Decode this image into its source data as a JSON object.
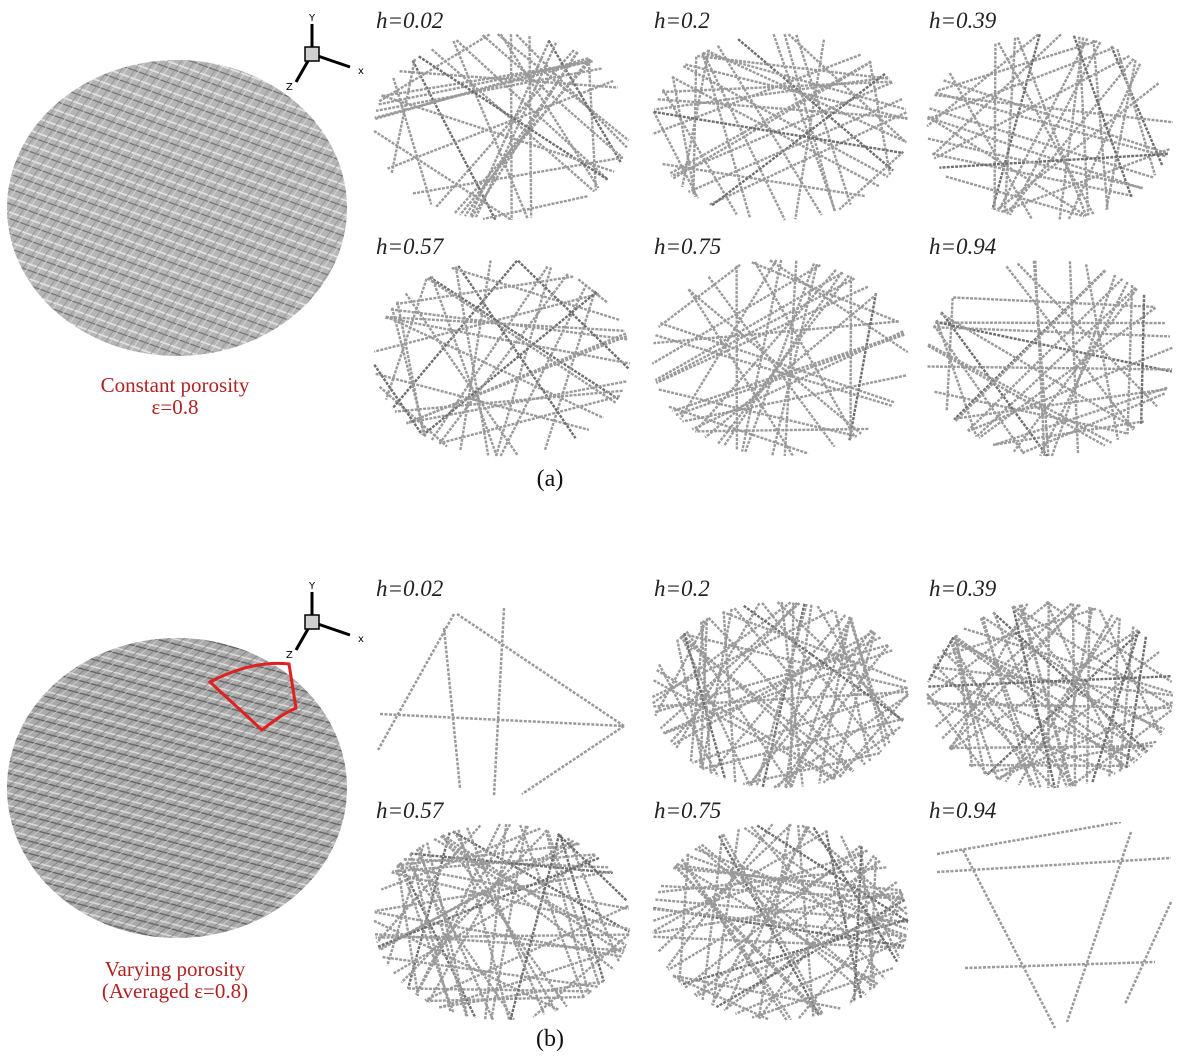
{
  "panel_a": {
    "caption_line1": "Constant porosity",
    "caption_line2": "ε=0.8",
    "label": "(a)",
    "slices": [
      "h=0.02",
      "h=0.2",
      "h=0.39",
      "h=0.57",
      "h=0.75",
      "h=0.94"
    ]
  },
  "panel_b": {
    "caption_line1": "Varying porosity",
    "caption_line2": "(Averaged ε=0.8)",
    "label": "(b)",
    "slices": [
      "h=0.02",
      "h=0.2",
      "h=0.39",
      "h=0.57",
      "h=0.75",
      "h=0.94"
    ]
  },
  "axes": {
    "x": "x",
    "y": "Y",
    "z": "Z"
  },
  "colors": {
    "fiber": "#9a9a9a",
    "disk": "#8c8c8c",
    "caption": "#b22222",
    "highlight": "#e02020"
  }
}
